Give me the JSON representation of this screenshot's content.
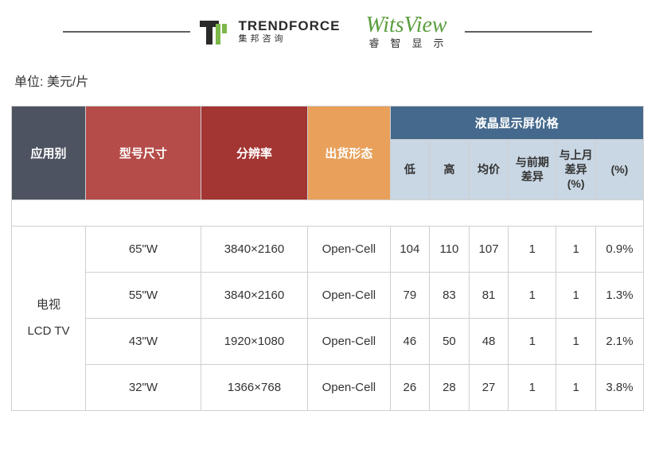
{
  "logos": {
    "trendforce": {
      "main": "TRENDFORCE",
      "sub": "集邦咨询"
    },
    "witsview": {
      "main": "WitsView",
      "sub": "睿智显示"
    }
  },
  "unit_label": "单位: 美元/片",
  "table": {
    "headers": {
      "application": "应用别",
      "model_size": "型号尺寸",
      "resolution": "分辨率",
      "shipping_form": "出货形态",
      "price_group": "液晶显示屏价格",
      "low": "低",
      "high": "高",
      "avg": "均价",
      "diff_prev": "与前期差异",
      "diff_prev2": "与上月差异",
      "pct": "(%)"
    },
    "colors": {
      "app_bg": "#4d5360",
      "model_bg": "#b54c49",
      "res_bg": "#a33532",
      "ship_bg": "#e8a05b",
      "price_group_bg": "#44698c",
      "price_sub_bg": "#c9d7e4",
      "border": "#cfcfcf",
      "header_text": "#ffffff",
      "sub_header_text": "#333333",
      "cell_text": "#333333"
    },
    "category": {
      "line1": "电视",
      "line2": "LCD TV"
    },
    "rows": [
      {
        "size": "65\"W",
        "res": "3840×2160",
        "form": "Open-Cell",
        "low": 104,
        "high": 110,
        "avg": 107,
        "d1": 1,
        "d2": 1,
        "pct": "0.9%"
      },
      {
        "size": "55\"W",
        "res": "3840×2160",
        "form": "Open-Cell",
        "low": 79,
        "high": 83,
        "avg": 81,
        "d1": 1,
        "d2": 1,
        "pct": "1.3%"
      },
      {
        "size": "43\"W",
        "res": "1920×1080",
        "form": "Open-Cell",
        "low": 46,
        "high": 50,
        "avg": 48,
        "d1": 1,
        "d2": 1,
        "pct": "2.1%"
      },
      {
        "size": "32\"W",
        "res": "1366×768",
        "form": "Open-Cell",
        "low": 26,
        "high": 28,
        "avg": 27,
        "d1": 1,
        "d2": 1,
        "pct": "3.8%"
      }
    ]
  }
}
